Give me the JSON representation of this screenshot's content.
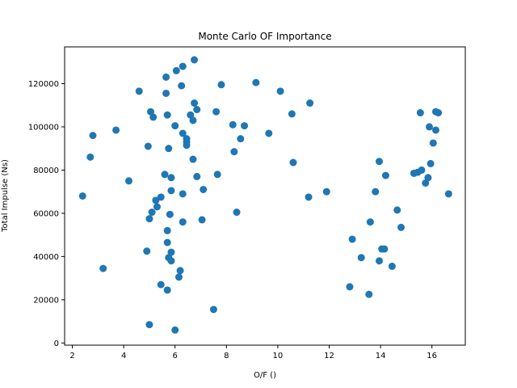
{
  "chart_data": {
    "type": "scatter",
    "title": "Monte Carlo OF Importance",
    "xlabel": "O/F ()",
    "ylabel": "Total Impulse (Ns)",
    "xlim": [
      1.7,
      17.3
    ],
    "ylim": [
      -1000,
      137000
    ],
    "xticks": [
      2,
      4,
      6,
      8,
      10,
      12,
      14,
      16
    ],
    "yticks": [
      0,
      20000,
      40000,
      60000,
      80000,
      100000,
      120000
    ],
    "grid": false,
    "marker_color": "#1f77b4",
    "series": [
      {
        "points": [
          [
            2.4,
            68000
          ],
          [
            2.7,
            86000
          ],
          [
            2.8,
            96000
          ],
          [
            3.2,
            34500
          ],
          [
            3.7,
            98500
          ],
          [
            4.2,
            75000
          ],
          [
            4.6,
            116500
          ],
          [
            4.9,
            42500
          ],
          [
            4.95,
            91000
          ],
          [
            5.0,
            8500
          ],
          [
            5.0,
            57500
          ],
          [
            5.05,
            107000
          ],
          [
            5.1,
            60500
          ],
          [
            5.15,
            104500
          ],
          [
            5.25,
            66000
          ],
          [
            5.3,
            63000
          ],
          [
            5.45,
            27000
          ],
          [
            5.45,
            67500
          ],
          [
            5.6,
            78000
          ],
          [
            5.65,
            115500
          ],
          [
            5.65,
            123000
          ],
          [
            5.7,
            105500
          ],
          [
            5.7,
            46500
          ],
          [
            5.7,
            52000
          ],
          [
            5.7,
            24500
          ],
          [
            5.75,
            90000
          ],
          [
            5.75,
            39500
          ],
          [
            5.8,
            59500
          ],
          [
            5.85,
            76500
          ],
          [
            5.85,
            70500
          ],
          [
            5.85,
            42000
          ],
          [
            5.85,
            38000
          ],
          [
            6.0,
            6000
          ],
          [
            6.0,
            100500
          ],
          [
            6.05,
            126000
          ],
          [
            6.15,
            30500
          ],
          [
            6.2,
            33500
          ],
          [
            6.25,
            119000
          ],
          [
            6.3,
            97000
          ],
          [
            6.3,
            128000
          ],
          [
            6.3,
            56000
          ],
          [
            6.3,
            69000
          ],
          [
            6.45,
            94500
          ],
          [
            6.45,
            93000
          ],
          [
            6.45,
            91500
          ],
          [
            6.6,
            105500
          ],
          [
            6.7,
            103000
          ],
          [
            6.7,
            85000
          ],
          [
            6.75,
            131000
          ],
          [
            6.75,
            111000
          ],
          [
            6.85,
            77000
          ],
          [
            6.85,
            108000
          ],
          [
            7.05,
            57000
          ],
          [
            7.1,
            71000
          ],
          [
            7.5,
            15500
          ],
          [
            7.6,
            107000
          ],
          [
            7.65,
            78000
          ],
          [
            7.8,
            119500
          ],
          [
            8.25,
            101000
          ],
          [
            8.3,
            88500
          ],
          [
            8.4,
            60500
          ],
          [
            8.55,
            94500
          ],
          [
            8.7,
            100500
          ],
          [
            9.15,
            120500
          ],
          [
            9.65,
            97000
          ],
          [
            10.1,
            116500
          ],
          [
            10.55,
            106000
          ],
          [
            10.6,
            83500
          ],
          [
            11.2,
            67500
          ],
          [
            11.25,
            111000
          ],
          [
            11.9,
            70000
          ],
          [
            12.8,
            26000
          ],
          [
            12.9,
            48000
          ],
          [
            13.25,
            39500
          ],
          [
            13.55,
            22500
          ],
          [
            13.6,
            56000
          ],
          [
            13.8,
            70000
          ],
          [
            13.95,
            38000
          ],
          [
            13.95,
            84000
          ],
          [
            14.05,
            43500
          ],
          [
            14.15,
            43500
          ],
          [
            14.2,
            77500
          ],
          [
            14.45,
            35500
          ],
          [
            14.65,
            61500
          ],
          [
            14.8,
            53500
          ],
          [
            15.3,
            78500
          ],
          [
            15.45,
            79000
          ],
          [
            15.55,
            106500
          ],
          [
            15.6,
            80000
          ],
          [
            15.75,
            74000
          ],
          [
            15.85,
            76500
          ],
          [
            15.9,
            100000
          ],
          [
            15.95,
            83000
          ],
          [
            16.05,
            92500
          ],
          [
            16.15,
            98500
          ],
          [
            16.15,
            107000
          ],
          [
            16.25,
            106500
          ],
          [
            16.65,
            69000
          ]
        ]
      }
    ]
  }
}
